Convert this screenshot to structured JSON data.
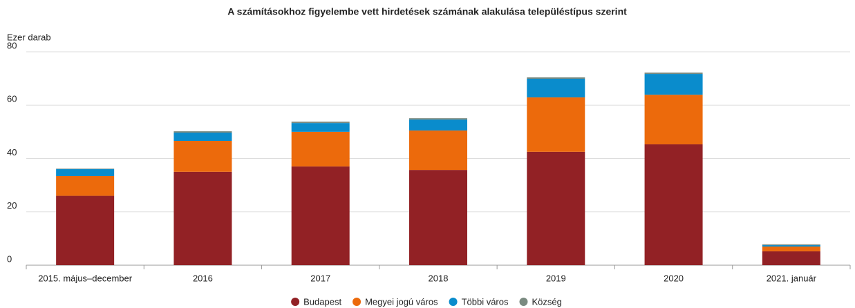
{
  "chart_data": {
    "type": "stacked_bar",
    "title": "A számításokhoz figyelembe vett hirdetések számának alakulása településtípus szerint",
    "y_label": "Ezer darab",
    "categories": [
      "2015. május–december",
      "2016",
      "2017",
      "2018",
      "2019",
      "2020",
      "2021. január"
    ],
    "series": [
      {
        "name": "Budapest",
        "color": "#922125",
        "values": [
          26,
          35,
          37,
          35.7,
          42.5,
          45.3,
          5.2
        ]
      },
      {
        "name": "Megyei jogú város",
        "color": "#ec6a0c",
        "values": [
          7.4,
          11.6,
          13,
          14.8,
          20.4,
          18.6,
          1.8
        ]
      },
      {
        "name": "Többi város",
        "color": "#0a8ccc",
        "values": [
          2.6,
          3.1,
          3.3,
          4.1,
          7,
          7.8,
          0.5
        ]
      },
      {
        "name": "Község",
        "color": "#7a8a80",
        "values": [
          0.2,
          0.5,
          0.5,
          0.5,
          0.5,
          0.5,
          0.3
        ]
      }
    ],
    "ylim": [
      0,
      80
    ],
    "yticks": [
      0,
      20,
      40,
      60,
      80
    ],
    "grid": true,
    "legend": "bottom"
  }
}
